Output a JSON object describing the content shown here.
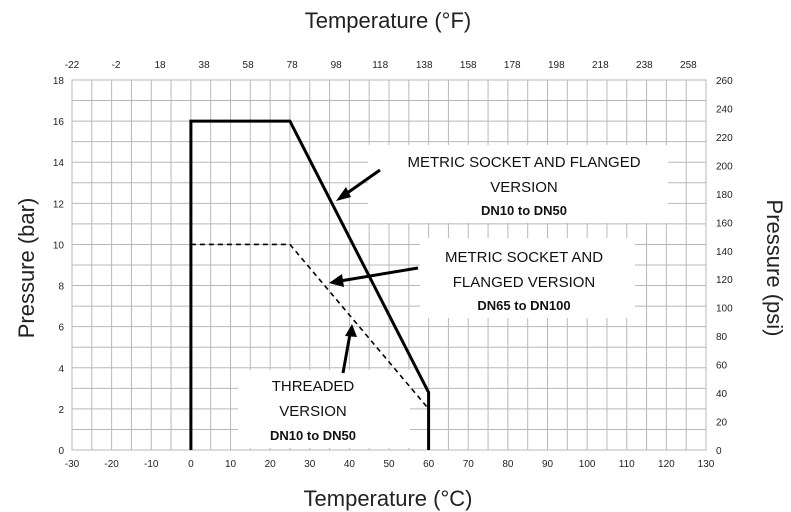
{
  "chart_data": {
    "type": "line",
    "titles": {
      "top": "Temperature (°F)",
      "bottom": "Temperature (°C)",
      "left": "Pressure (bar)",
      "right": "Pressure (psi)"
    },
    "x_bottom": {
      "label": "Temperature (°C)",
      "min": -30,
      "max": 130,
      "step": 10
    },
    "x_top": {
      "label": "Temperature (°F)",
      "ticks": [
        -22,
        -2,
        18,
        38,
        58,
        78,
        98,
        118,
        138,
        158,
        178,
        198,
        218,
        238,
        258
      ]
    },
    "y_left": {
      "label": "Pressure (bar)",
      "min": 0,
      "max": 18,
      "step": 2
    },
    "y_right": {
      "label": "Pressure (psi)",
      "min": 0,
      "max": 260,
      "step": 20
    },
    "grid": true,
    "series": [
      {
        "style": "solid",
        "points": [
          [
            0,
            0
          ],
          [
            0,
            16
          ],
          [
            25,
            16
          ],
          [
            60,
            2.8
          ],
          [
            60,
            0
          ]
        ]
      },
      {
        "style": "dashed",
        "points": [
          [
            0,
            10
          ],
          [
            25,
            10
          ],
          [
            60,
            2
          ]
        ]
      }
    ],
    "annotations": [
      {
        "lines": [
          "METRIC SOCKET AND FLANGED",
          "VERSION"
        ],
        "bold": "DN10 to DN50"
      },
      {
        "lines": [
          "METRIC SOCKET AND",
          "FLANGED VERSION"
        ],
        "bold": "DN65 to DN100"
      },
      {
        "lines": [
          "THREADED",
          "VERSION"
        ],
        "bold": "DN10 to DN50"
      }
    ]
  }
}
